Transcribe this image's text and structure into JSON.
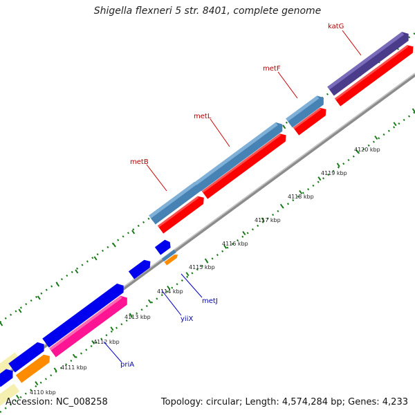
{
  "title": "Shigella flexneri 5 str. 8401, complete genome",
  "footer": {
    "accession": "Accession: NC_008258",
    "topology": "Topology: circular; Length: 4,574,284 bp; Genes: 4,233"
  },
  "colors": {
    "backbone": "#8c8c8c",
    "tick": "#1a7a1a",
    "cds": "#ff0000",
    "gene_fwd": "#4682b4",
    "gene_dark": "#4a3c8a",
    "gene_blue": "#0000ee",
    "gene_pink": "#ff1493",
    "gene_orange": "#ff8c00",
    "gene_cream": "#f5f0b0",
    "label_red": "#b00000",
    "label_blue": "#0000b0"
  },
  "kbp_labels": [
    "4110 kbp",
    "4111 kbp",
    "4112 kbp",
    "4113 kbp",
    "4114 kbp",
    "4115 kbp",
    "4116 kbp",
    "4117 kbp",
    "4118 kbp",
    "4119 kbp",
    "4120 kbp"
  ],
  "genes": {
    "katG": "katG",
    "metF": "metF",
    "metL": "metL",
    "metB": "metB",
    "metJ": "metJ",
    "yiiX": "yiiX",
    "priA": "priA"
  }
}
